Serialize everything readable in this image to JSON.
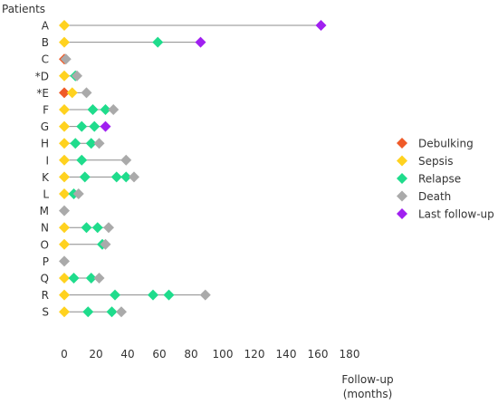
{
  "chart_data": {
    "type": "scatter",
    "y_title": "Patients",
    "x_title_lines": [
      "Follow-up",
      "(months)"
    ],
    "x_ticks": [
      0,
      20,
      40,
      60,
      80,
      100,
      120,
      140,
      160,
      180
    ],
    "xlim": [
      0,
      180
    ],
    "grid": false,
    "legend_position": "right",
    "event_types": [
      {
        "key": "debulking",
        "name": "Debulking",
        "color": "#ef5a28"
      },
      {
        "key": "sepsis",
        "name": "Sepsis",
        "color": "#ffd21f"
      },
      {
        "key": "relapse",
        "name": "Relapse",
        "color": "#1fdc8c"
      },
      {
        "key": "death",
        "name": "Death",
        "color": "#aaaaaa"
      },
      {
        "key": "last_follow_up",
        "name": "Last follow-up",
        "color": "#a020f0"
      }
    ],
    "patients": [
      {
        "label": "A",
        "end": 162,
        "events": [
          {
            "type": "sepsis",
            "x": 0
          },
          {
            "type": "last_follow_up",
            "x": 162
          }
        ]
      },
      {
        "label": "B",
        "end": 86,
        "events": [
          {
            "type": "sepsis",
            "x": 0
          },
          {
            "type": "relapse",
            "x": 59
          },
          {
            "type": "last_follow_up",
            "x": 86
          }
        ]
      },
      {
        "label": "C",
        "end": 1,
        "events": [
          {
            "type": "debulking",
            "x": 0
          },
          {
            "type": "death",
            "x": 1
          }
        ]
      },
      {
        "label": "*D",
        "end": 8,
        "events": [
          {
            "type": "sepsis",
            "x": 0
          },
          {
            "type": "relapse",
            "x": 7
          },
          {
            "type": "death",
            "x": 8
          }
        ]
      },
      {
        "label": "*E",
        "end": 14,
        "events": [
          {
            "type": "debulking",
            "x": 0
          },
          {
            "type": "sepsis",
            "x": 5
          },
          {
            "type": "death",
            "x": 14
          }
        ]
      },
      {
        "label": "F",
        "end": 31,
        "events": [
          {
            "type": "sepsis",
            "x": 0
          },
          {
            "type": "relapse",
            "x": 18
          },
          {
            "type": "relapse",
            "x": 26
          },
          {
            "type": "death",
            "x": 31
          }
        ]
      },
      {
        "label": "G",
        "end": 26,
        "events": [
          {
            "type": "sepsis",
            "x": 0
          },
          {
            "type": "relapse",
            "x": 11
          },
          {
            "type": "relapse",
            "x": 19
          },
          {
            "type": "last_follow_up",
            "x": 26
          }
        ]
      },
      {
        "label": "H",
        "end": 22,
        "events": [
          {
            "type": "sepsis",
            "x": 0
          },
          {
            "type": "relapse",
            "x": 7
          },
          {
            "type": "relapse",
            "x": 17
          },
          {
            "type": "death",
            "x": 22
          }
        ]
      },
      {
        "label": "I",
        "end": 39,
        "events": [
          {
            "type": "sepsis",
            "x": 0
          },
          {
            "type": "relapse",
            "x": 11
          },
          {
            "type": "death",
            "x": 39
          }
        ]
      },
      {
        "label": "K",
        "end": 44,
        "events": [
          {
            "type": "sepsis",
            "x": 0
          },
          {
            "type": "relapse",
            "x": 13
          },
          {
            "type": "relapse",
            "x": 33
          },
          {
            "type": "relapse",
            "x": 39
          },
          {
            "type": "death",
            "x": 44
          }
        ]
      },
      {
        "label": "L",
        "end": 9,
        "events": [
          {
            "type": "sepsis",
            "x": 0
          },
          {
            "type": "relapse",
            "x": 6
          },
          {
            "type": "death",
            "x": 9
          }
        ]
      },
      {
        "label": "M",
        "end": 0,
        "events": [
          {
            "type": "death",
            "x": 0
          }
        ]
      },
      {
        "label": "N",
        "end": 28,
        "events": [
          {
            "type": "sepsis",
            "x": 0
          },
          {
            "type": "relapse",
            "x": 14
          },
          {
            "type": "relapse",
            "x": 21
          },
          {
            "type": "death",
            "x": 28
          }
        ]
      },
      {
        "label": "O",
        "end": 26,
        "events": [
          {
            "type": "sepsis",
            "x": 0
          },
          {
            "type": "relapse",
            "x": 24
          },
          {
            "type": "death",
            "x": 26
          }
        ]
      },
      {
        "label": "P",
        "end": 0,
        "events": [
          {
            "type": "death",
            "x": 0
          }
        ]
      },
      {
        "label": "Q",
        "end": 22,
        "events": [
          {
            "type": "sepsis",
            "x": 0
          },
          {
            "type": "relapse",
            "x": 6
          },
          {
            "type": "relapse",
            "x": 17
          },
          {
            "type": "death",
            "x": 22
          }
        ]
      },
      {
        "label": "R",
        "end": 89,
        "events": [
          {
            "type": "sepsis",
            "x": 0
          },
          {
            "type": "relapse",
            "x": 32
          },
          {
            "type": "relapse",
            "x": 56
          },
          {
            "type": "relapse",
            "x": 66
          },
          {
            "type": "death",
            "x": 89
          }
        ]
      },
      {
        "label": "S",
        "end": 36,
        "events": [
          {
            "type": "sepsis",
            "x": 0
          },
          {
            "type": "relapse",
            "x": 15
          },
          {
            "type": "relapse",
            "x": 30
          },
          {
            "type": "death",
            "x": 36
          }
        ]
      }
    ]
  }
}
